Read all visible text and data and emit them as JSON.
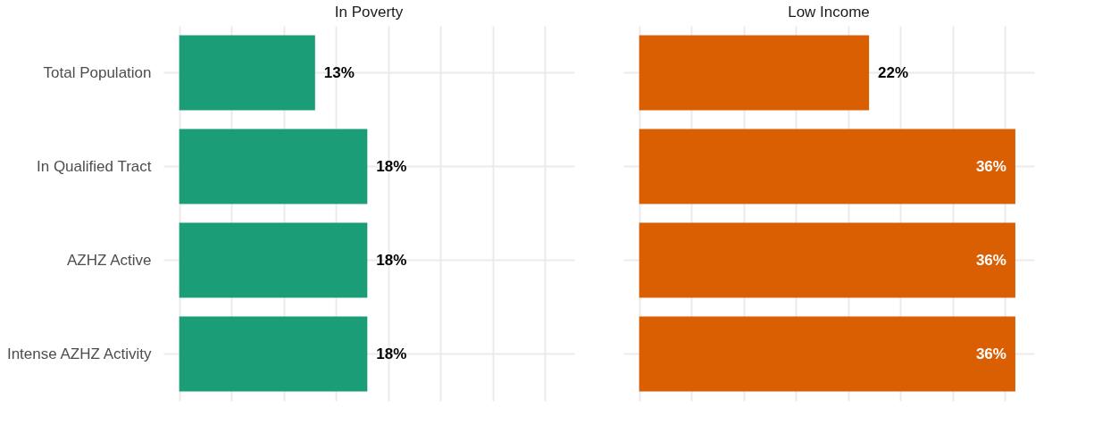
{
  "chart_data": [
    {
      "type": "bar",
      "orientation": "horizontal",
      "title": "In Poverty",
      "categories": [
        "Total Population",
        "In Qualified Tract",
        "AZHZ Active",
        "Intense AZHZ Activity"
      ],
      "values": [
        13,
        18,
        18,
        18
      ],
      "value_labels": [
        "13%",
        "18%",
        "18%",
        "18%"
      ],
      "color": "#1b9e77",
      "grid": true,
      "tick_labels": "y"
    },
    {
      "type": "bar",
      "orientation": "horizontal",
      "title": "Low Income",
      "categories": [
        null,
        null,
        null,
        null
      ],
      "values": [
        22,
        36,
        36,
        36
      ],
      "value_labels": [
        "22%",
        "36%",
        "36%",
        "36%"
      ],
      "color": "#d95f02",
      "grid": true,
      "tick_labels": false
    }
  ]
}
